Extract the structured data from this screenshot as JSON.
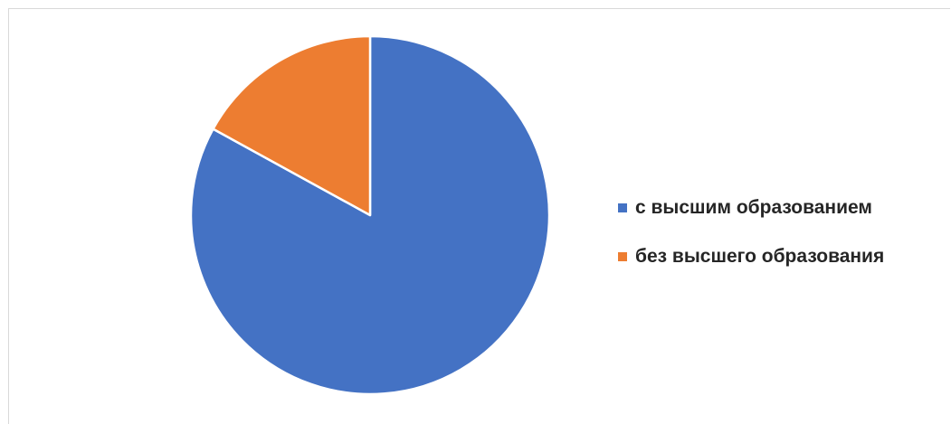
{
  "chart_data": {
    "type": "pie",
    "title": "",
    "categories": [
      "с высшим образованием",
      "без высшего образования"
    ],
    "values": [
      83,
      17
    ],
    "colors": [
      "#4472c4",
      "#ed7d31"
    ],
    "start_angle_deg": 0,
    "direction": "clockwise",
    "legend_position": "right"
  }
}
